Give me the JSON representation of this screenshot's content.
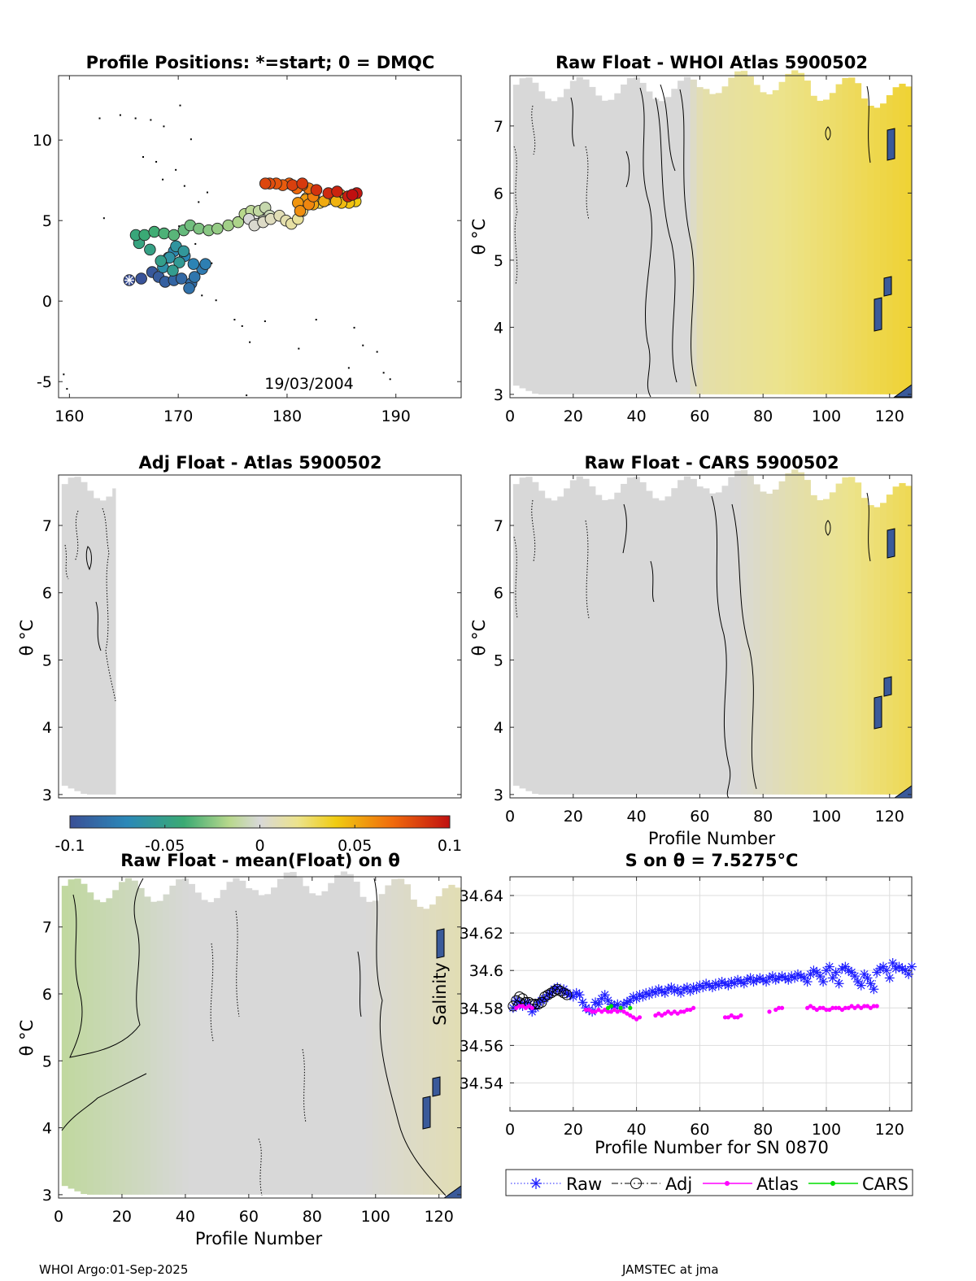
{
  "colors": {
    "accent_blue": "#1f1fff",
    "atlas_magenta": "#ff00ff",
    "cars_green": "#00dd00",
    "grid": "#dddddd"
  },
  "footer": {
    "left": "WHOI Argo:01-Sep-2025",
    "right": "JAMSTEC at jma"
  },
  "colorbar": {
    "ticks": [
      "-0.1",
      "-0.05",
      "0",
      "0.05",
      "0.1"
    ],
    "range": [
      -0.1,
      0.1
    ]
  },
  "chart_data": [
    {
      "id": "positions",
      "type": "scatter",
      "title": "Profile Positions: *=start; 0 = DMQC",
      "xlabel": "",
      "ylabel": "",
      "xlim": [
        159,
        196
      ],
      "ylim": [
        -6,
        14
      ],
      "x_ticks": [
        "160",
        "170",
        "180",
        "190"
      ],
      "x_tick_values": [
        160,
        170,
        180,
        190
      ],
      "y_ticks": [
        "-5",
        "0",
        "5",
        "10"
      ],
      "y_tick_values": [
        -5,
        0,
        5,
        10
      ],
      "annotation": "19/03/2004",
      "start": [
        165.5,
        1.3
      ],
      "track": [
        [
          165.5,
          1.3
        ],
        [
          166.6,
          1.4
        ],
        [
          167.6,
          1.8
        ],
        [
          168.2,
          1.5
        ],
        [
          168.8,
          1.2
        ],
        [
          169.6,
          1.3
        ],
        [
          170.3,
          1.4
        ],
        [
          171.2,
          1.1
        ],
        [
          171.0,
          0.8
        ],
        [
          171.5,
          1.5
        ],
        [
          172.2,
          2.0
        ],
        [
          172.5,
          2.3
        ],
        [
          171.4,
          2.3
        ],
        [
          170.6,
          2.8
        ],
        [
          169.6,
          3.1
        ],
        [
          169.1,
          2.7
        ],
        [
          168.6,
          2.1
        ],
        [
          169.2,
          2.7
        ],
        [
          169.8,
          3.4
        ],
        [
          170.5,
          3.1
        ],
        [
          170.1,
          2.4
        ],
        [
          169.5,
          1.9
        ],
        [
          168.4,
          2.5
        ],
        [
          167.4,
          3.2
        ],
        [
          166.4,
          3.6
        ],
        [
          166.1,
          4.1
        ],
        [
          166.9,
          4.1
        ],
        [
          167.8,
          4.3
        ],
        [
          168.7,
          4.2
        ],
        [
          169.6,
          4.1
        ],
        [
          170.5,
          4.4
        ],
        [
          171.1,
          4.7
        ],
        [
          171.9,
          4.5
        ],
        [
          172.8,
          4.4
        ],
        [
          173.6,
          4.5
        ],
        [
          174.6,
          4.7
        ],
        [
          175.5,
          4.9
        ],
        [
          176.1,
          5.4
        ],
        [
          176.7,
          5.6
        ],
        [
          177.4,
          5.6
        ],
        [
          178.0,
          5.8
        ],
        [
          178.4,
          5.3
        ],
        [
          177.8,
          5.0
        ],
        [
          177.1,
          4.8
        ],
        [
          176.5,
          5.1
        ],
        [
          177.0,
          4.7
        ],
        [
          177.8,
          4.9
        ],
        [
          178.5,
          5.1
        ],
        [
          179.3,
          5.3
        ],
        [
          179.9,
          5.0
        ],
        [
          180.4,
          4.8
        ],
        [
          181.0,
          5.1
        ],
        [
          181.4,
          5.6
        ],
        [
          181.6,
          6.1
        ],
        [
          181.8,
          6.4
        ],
        [
          182.5,
          6.6
        ],
        [
          183.0,
          6.1
        ],
        [
          183.7,
          6.3
        ],
        [
          184.2,
          6.6
        ],
        [
          184.9,
          6.6
        ],
        [
          185.4,
          6.4
        ],
        [
          186.0,
          6.5
        ],
        [
          186.3,
          6.2
        ],
        [
          185.7,
          6.1
        ],
        [
          185.0,
          6.1
        ],
        [
          184.5,
          6.2
        ],
        [
          183.4,
          6.2
        ],
        [
          182.4,
          6.0
        ],
        [
          181.7,
          6.3
        ],
        [
          181.0,
          6.1
        ],
        [
          181.2,
          5.6
        ],
        [
          182.0,
          6.0
        ],
        [
          182.4,
          6.5
        ],
        [
          182.0,
          7.0
        ],
        [
          181.4,
          7.2
        ],
        [
          180.9,
          7.0
        ],
        [
          180.2,
          7.3
        ],
        [
          179.6,
          7.2
        ],
        [
          179.0,
          7.3
        ],
        [
          178.4,
          7.3
        ],
        [
          178.0,
          7.3
        ],
        [
          180.5,
          7.2
        ],
        [
          181.4,
          7.3
        ],
        [
          182.7,
          6.9
        ],
        [
          183.8,
          6.7
        ],
        [
          184.6,
          6.8
        ],
        [
          185.6,
          6.5
        ],
        [
          186.4,
          6.7
        ],
        [
          186.0,
          6.6
        ]
      ]
    },
    {
      "id": "raw-whoi",
      "type": "heatmap",
      "title": "Raw Float - WHOI Atlas  5900502",
      "xlabel": "",
      "ylabel": "θ °C",
      "xlim": [
        0,
        127
      ],
      "ylim": [
        2.95,
        7.75
      ],
      "x_ticks": [
        "0",
        "20",
        "40",
        "60",
        "80",
        "100",
        "120"
      ],
      "x_tick_values": [
        0,
        20,
        40,
        60,
        80,
        100,
        120
      ],
      "y_ticks": [
        "3",
        "4",
        "5",
        "6",
        "7"
      ],
      "y_tick_values": [
        3,
        4,
        5,
        6,
        7
      ],
      "field": [
        [
          0,
          0.0
        ],
        [
          55,
          0.0
        ],
        [
          60,
          0.012
        ],
        [
          100,
          0.025
        ],
        [
          127,
          0.035
        ]
      ]
    },
    {
      "id": "adj-atlas",
      "type": "heatmap",
      "title": "Adj Float - Atlas  5900502",
      "xlabel": "",
      "ylabel": "θ °C",
      "xlim": [
        0,
        127
      ],
      "ylim": [
        2.95,
        7.75
      ],
      "x_ticks": [],
      "x_tick_values": [],
      "y_ticks": [
        "3",
        "4",
        "5",
        "6",
        "7"
      ],
      "y_tick_values": [
        3,
        4,
        5,
        6,
        7
      ],
      "data_extent": [
        0,
        18
      ],
      "field": [
        [
          0,
          0.0
        ],
        [
          18,
          0.0
        ]
      ]
    },
    {
      "id": "raw-cars",
      "type": "heatmap",
      "title": "Raw Float - CARS  5900502",
      "xlabel": "Profile Number",
      "ylabel": "θ °C",
      "xlim": [
        0,
        127
      ],
      "ylim": [
        2.95,
        7.75
      ],
      "x_ticks": [
        "0",
        "20",
        "40",
        "60",
        "80",
        "100",
        "120"
      ],
      "x_tick_values": [
        0,
        20,
        40,
        60,
        80,
        100,
        120
      ],
      "y_ticks": [
        "3",
        "4",
        "5",
        "6",
        "7"
      ],
      "y_tick_values": [
        3,
        4,
        5,
        6,
        7
      ],
      "field": [
        [
          0,
          0.0
        ],
        [
          70,
          0.0
        ],
        [
          90,
          0.012
        ],
        [
          127,
          0.03
        ]
      ]
    },
    {
      "id": "raw-mean",
      "type": "heatmap",
      "title": "Raw Float - mean(Float) on θ",
      "xlabel": "Profile Number",
      "ylabel": "θ °C",
      "xlim": [
        0,
        127
      ],
      "ylim": [
        2.95,
        7.75
      ],
      "x_ticks": [
        "0",
        "20",
        "40",
        "60",
        "80",
        "100",
        "120"
      ],
      "x_tick_values": [
        0,
        20,
        40,
        60,
        80,
        100,
        120
      ],
      "y_ticks": [
        "3",
        "4",
        "5",
        "6",
        "7"
      ],
      "y_tick_values": [
        3,
        4,
        5,
        6,
        7
      ],
      "field": [
        [
          0,
          -0.012
        ],
        [
          25,
          -0.005
        ],
        [
          40,
          0.0
        ],
        [
          95,
          0.0
        ],
        [
          127,
          0.01
        ]
      ]
    },
    {
      "id": "salinity",
      "type": "line",
      "title": "S on θ = 7.5275°C",
      "xlabel": "Profile Number for SN 0870",
      "ylabel": "Salinity",
      "xlim": [
        0,
        127
      ],
      "ylim": [
        34.525,
        34.65
      ],
      "x_ticks": [
        "0",
        "20",
        "40",
        "60",
        "80",
        "100",
        "120"
      ],
      "x_tick_values": [
        0,
        20,
        40,
        60,
        80,
        100,
        120
      ],
      "y_ticks": [
        "34.54",
        "34.56",
        "34.58",
        "34.6",
        "34.62",
        "34.64"
      ],
      "y_tick_values": [
        34.54,
        34.56,
        34.58,
        34.6,
        34.62,
        34.64
      ],
      "legend": [
        "Raw",
        "Adj",
        "Atlas",
        "CARS"
      ],
      "series": [
        {
          "name": "Raw",
          "x": [
            1,
            2,
            3,
            4,
            5,
            6,
            7,
            8,
            9,
            10,
            11,
            12,
            13,
            14,
            15,
            16,
            17,
            18,
            19,
            20,
            21,
            22,
            23,
            24,
            25,
            26,
            27,
            28,
            29,
            30,
            31,
            32,
            33,
            34,
            35,
            36,
            37,
            38,
            39,
            40,
            41,
            42,
            43,
            44,
            45,
            46,
            47,
            48,
            49,
            50,
            51,
            52,
            53,
            54,
            55,
            56,
            57,
            58,
            59,
            60,
            61,
            62,
            63,
            64,
            65,
            66,
            67,
            68,
            69,
            70,
            71,
            72,
            73,
            74,
            75,
            76,
            77,
            78,
            79,
            80,
            81,
            82,
            83,
            84,
            85,
            86,
            87,
            88,
            89,
            90,
            91,
            92,
            93,
            94,
            95,
            96,
            97,
            98,
            99,
            100,
            101,
            102,
            103,
            104,
            105,
            106,
            107,
            108,
            109,
            110,
            111,
            112,
            113,
            114,
            115,
            116,
            117,
            118,
            119,
            120,
            121,
            122,
            123,
            124,
            125,
            126,
            127
          ],
          "y": [
            34.58,
            34.584,
            34.583,
            34.581,
            34.583,
            34.582,
            34.578,
            34.58,
            34.583,
            34.584,
            34.585,
            34.587,
            34.588,
            34.59,
            34.591,
            34.589,
            34.59,
            34.588,
            34.587,
            34.586,
            34.588,
            34.587,
            34.583,
            34.58,
            34.579,
            34.578,
            34.583,
            34.582,
            34.585,
            34.587,
            34.584,
            34.582,
            34.581,
            34.582,
            34.58,
            34.582,
            34.583,
            34.584,
            34.586,
            34.585,
            34.587,
            34.586,
            34.588,
            34.587,
            34.589,
            34.588,
            34.59,
            34.589,
            34.588,
            34.59,
            34.591,
            34.589,
            34.59,
            34.588,
            34.59,
            34.591,
            34.589,
            34.591,
            34.59,
            34.592,
            34.591,
            34.593,
            34.592,
            34.591,
            34.593,
            34.592,
            34.594,
            34.593,
            34.592,
            34.594,
            34.593,
            34.595,
            34.594,
            34.593,
            34.595,
            34.596,
            34.594,
            34.595,
            34.596,
            34.595,
            34.594,
            34.596,
            34.597,
            34.595,
            34.596,
            34.597,
            34.596,
            34.595,
            34.597,
            34.596,
            34.598,
            34.597,
            34.596,
            34.594,
            34.598,
            34.6,
            34.599,
            34.597,
            34.594,
            34.6,
            34.602,
            34.596,
            34.599,
            34.593,
            34.601,
            34.602,
            34.6,
            34.599,
            34.597,
            34.594,
            34.592,
            34.598,
            34.596,
            34.593,
            34.59,
            34.599,
            34.601,
            34.602,
            34.6,
            34.596,
            34.604,
            34.601,
            34.602,
            34.601,
            34.6,
            34.598,
            34.602
          ]
        },
        {
          "name": "Adj",
          "x": [
            1,
            2,
            3,
            4,
            5,
            6,
            7,
            8,
            9,
            10,
            11,
            12,
            13,
            14,
            15,
            16,
            17,
            18
          ],
          "y": [
            34.581,
            34.584,
            34.586,
            34.585,
            34.583,
            34.583,
            34.582,
            34.582,
            34.582,
            34.583,
            34.586,
            34.587,
            34.588,
            34.589,
            34.59,
            34.589,
            34.588,
            34.587
          ]
        },
        {
          "name": "Atlas",
          "x": [
            2,
            3,
            4,
            5,
            6,
            7,
            24,
            25,
            26,
            27,
            28,
            29,
            30,
            31,
            32,
            33,
            34,
            35,
            36,
            37,
            38,
            39,
            40,
            41,
            46,
            47,
            48,
            49,
            50,
            51,
            52,
            53,
            54,
            55,
            56,
            57,
            58,
            68,
            69,
            70,
            71,
            72,
            73,
            82,
            84,
            85,
            86,
            94,
            95,
            96,
            97,
            98,
            99,
            100,
            101,
            102,
            103,
            104,
            105,
            106,
            107,
            108,
            109,
            110,
            111,
            112,
            113,
            114,
            115,
            116
          ],
          "y": [
            34.58,
            34.581,
            34.581,
            34.58,
            34.581,
            34.58,
            34.579,
            34.579,
            34.578,
            34.578,
            34.579,
            34.578,
            34.579,
            34.578,
            34.578,
            34.579,
            34.578,
            34.579,
            34.578,
            34.577,
            34.576,
            34.575,
            34.574,
            34.575,
            34.576,
            34.577,
            34.576,
            34.577,
            34.578,
            34.577,
            34.578,
            34.577,
            34.578,
            34.578,
            34.579,
            34.579,
            34.58,
            34.575,
            34.575,
            34.576,
            34.575,
            34.575,
            34.576,
            34.578,
            34.579,
            34.58,
            34.58,
            34.58,
            34.581,
            34.58,
            34.579,
            34.58,
            34.58,
            34.579,
            34.579,
            34.58,
            34.58,
            34.58,
            34.579,
            34.58,
            34.58,
            34.581,
            34.58,
            34.581,
            34.58,
            34.581,
            34.581,
            34.58,
            34.581,
            34.581
          ]
        },
        {
          "name": "CARS",
          "x": [
            31,
            32,
            35,
            38
          ],
          "y": [
            34.58,
            34.581,
            34.58,
            34.58
          ]
        }
      ]
    }
  ]
}
